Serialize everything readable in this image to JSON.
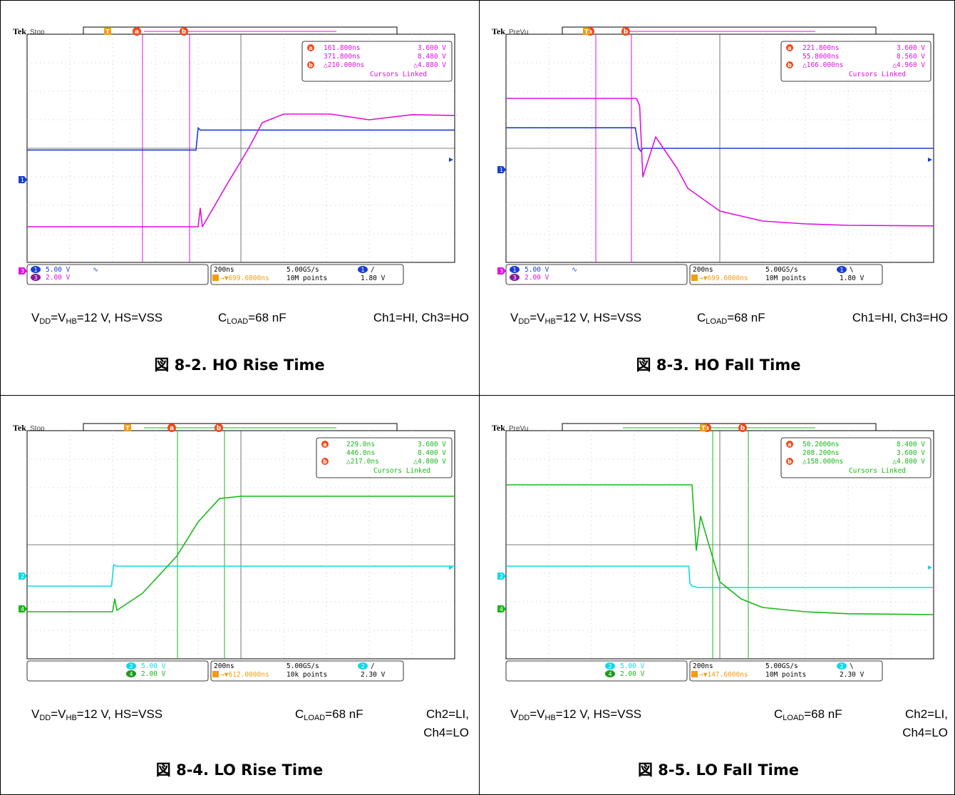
{
  "panels": [
    {
      "id": "ho-rise",
      "status": "Stop",
      "channels": [
        {
          "num": "1",
          "color": "#1a3fd0",
          "scale": "5.00 V",
          "coupling": "∿"
        },
        {
          "num": "3",
          "color": "#e010e0",
          "scale": "2.00 V"
        }
      ],
      "timebase": "200ns",
      "samplerate": "5.00GS/s",
      "delay": "699.6000ns",
      "points": "10M points",
      "trig_ch": "1",
      "trig_slope": "/",
      "trig_level": "1.80 V",
      "cursor_color": "#e010e0",
      "meas": {
        "a_time": "161.800ns",
        "a_volt": "3.600 V",
        "b_time": "371.800ns",
        "b_volt": "8.480 V",
        "d_time": "△210.000ns",
        "d_volt": "△4.880 V",
        "linked": "Cursors Linked"
      },
      "cond": {
        "vdd": "V",
        "vdd_sub": "DD",
        "eq": "=V",
        "vhb_sub": "HB",
        "rest": "=12 V, HS=VSS",
        "cload": "C",
        "cload_sub": "LOAD",
        "cload_val": "=68 nF",
        "ch": "Ch1=HI, Ch3=HO",
        "ch2": ""
      },
      "caption": "図 8-2. HO Rise Time"
    },
    {
      "id": "ho-fall",
      "status": "PreVu",
      "channels": [
        {
          "num": "1",
          "color": "#1a3fd0",
          "scale": "5.00 V",
          "coupling": "∿"
        },
        {
          "num": "3",
          "color": "#e010e0",
          "scale": "2.00 V"
        }
      ],
      "timebase": "200ns",
      "samplerate": "5.00GS/s",
      "delay": "699.6000ns",
      "points": "10M points",
      "trig_ch": "1",
      "trig_slope": "\\",
      "trig_level": "1.80 V",
      "cursor_color": "#e010e0",
      "meas": {
        "a_time": "221.800ns",
        "a_volt": "3.600 V",
        "b_time": "55.8000ns",
        "b_volt": "8.560 V",
        "d_time": "△166.000ns",
        "d_volt": "△4.960 V",
        "linked": "Cursors Linked"
      },
      "cond": {
        "vdd": "V",
        "vdd_sub": "DD",
        "eq": "=V",
        "vhb_sub": "HB",
        "rest": "=12 V, HS=VSS",
        "cload": "C",
        "cload_sub": "LOAD",
        "cload_val": "=68 nF",
        "ch": "Ch1=HI, Ch3=HO",
        "ch2": ""
      },
      "caption": "図 8-3. HO Fall Time"
    },
    {
      "id": "lo-rise",
      "status": "Stop",
      "channels": [
        {
          "num": "2",
          "color": "#10d8e8",
          "scale": "5.00 V"
        },
        {
          "num": "4",
          "color": "#18b818",
          "scale": "2.00 V"
        }
      ],
      "timebase": "200ns",
      "samplerate": "5.00GS/s",
      "delay": "612.0000ns",
      "points": "10k points",
      "trig_ch": "2",
      "trig_slope": "/",
      "trig_level": "2.30 V",
      "cursor_color": "#18b818",
      "meas": {
        "a_time": "229.0ns",
        "a_volt": "3.600 V",
        "b_time": "446.0ns",
        "b_volt": "8.400 V",
        "d_time": "△217.0ns",
        "d_volt": "△4.800 V",
        "linked": "Cursors Linked"
      },
      "cond": {
        "vdd": "V",
        "vdd_sub": "DD",
        "eq": "=V",
        "vhb_sub": "HB",
        "rest": "=12 V, HS=VSS",
        "cload": "C",
        "cload_sub": "LOAD",
        "cload_val": "=68 nF",
        "ch": "Ch2=LI,",
        "ch2": "Ch4=LO"
      },
      "caption": "図 8-4. LO Rise Time"
    },
    {
      "id": "lo-fall",
      "status": "PreVu",
      "channels": [
        {
          "num": "2",
          "color": "#10d8e8",
          "scale": "5.00 V"
        },
        {
          "num": "4",
          "color": "#18b818",
          "scale": "2.00 V"
        }
      ],
      "timebase": "200ns",
      "samplerate": "5.00GS/s",
      "delay": "147.6000ns",
      "points": "10M points",
      "trig_ch": "2",
      "trig_slope": "\\",
      "trig_level": "2.30 V",
      "cursor_color": "#18b818",
      "meas": {
        "a_time": "50.2000ns",
        "a_volt": "8.400 V",
        "b_time": "208.200ns",
        "b_volt": "3.600 V",
        "d_time": "△158.000ns",
        "d_volt": "△4.800 V",
        "linked": "Cursors Linked"
      },
      "cond": {
        "vdd": "V",
        "vdd_sub": "DD",
        "eq": "=V",
        "vhb_sub": "HB",
        "rest": "=12 V, HS=VSS",
        "cload": "C",
        "cload_sub": "LOAD",
        "cload_val": "=68 nF",
        "ch": "Ch2=LI,",
        "ch2": "Ch4=LO"
      },
      "caption": "図 8-5. LO Fall Time"
    }
  ],
  "brand": "Tek",
  "chart_data": [
    {
      "type": "line",
      "x_unit": "ns",
      "xlim": [
        -1000,
        1000
      ],
      "ylim": [
        -4,
        4
      ],
      "series": [
        {
          "name": "1",
          "x": [
            -1000,
            -210,
            -200,
            -190,
            1000
          ],
          "y": [
            -0.06,
            -0.06,
            0.72,
            0.64,
            0.64
          ]
        },
        {
          "name": "3",
          "x": [
            -1000,
            -200,
            -190,
            -180,
            -60,
            40,
            100,
            200,
            420,
            600,
            800,
            1000
          ],
          "y": [
            -2.75,
            -2.75,
            -2.1,
            -2.75,
            -1.2,
            0.05,
            0.9,
            1.2,
            1.2,
            1.0,
            1.18,
            1.15
          ]
        }
      ]
    },
    {
      "type": "line",
      "x_unit": "ns",
      "xlim": [
        -1000,
        1000
      ],
      "ylim": [
        -4,
        4
      ],
      "series": [
        {
          "name": "1",
          "x": [
            -1000,
            -395,
            -380,
            -370,
            -360,
            1000
          ],
          "y": [
            0.72,
            0.72,
            0.0,
            -0.1,
            0.0,
            0.0
          ]
        },
        {
          "name": "3",
          "x": [
            -1000,
            -390,
            -375,
            -360,
            -300,
            -200,
            -150,
            0,
            200,
            400,
            600,
            1000
          ],
          "y": [
            1.75,
            1.75,
            1.5,
            -1.0,
            0.4,
            -0.7,
            -1.4,
            -2.2,
            -2.55,
            -2.65,
            -2.7,
            -2.72
          ]
        }
      ]
    },
    {
      "type": "line",
      "x_unit": "ns",
      "xlim": [
        -1000,
        1000
      ],
      "ylim": [
        -4,
        4
      ],
      "series": [
        {
          "name": "2",
          "x": [
            -1000,
            -605,
            -595,
            -585,
            1000
          ],
          "y": [
            -1.45,
            -1.45,
            -0.7,
            -0.75,
            -0.75
          ]
        },
        {
          "name": "4",
          "x": [
            -1000,
            -600,
            -590,
            -580,
            -460,
            -300,
            -200,
            -100,
            0,
            200,
            1000
          ],
          "y": [
            -2.35,
            -2.35,
            -1.9,
            -2.3,
            -1.7,
            -0.4,
            0.8,
            1.62,
            1.7,
            1.7,
            1.7
          ]
        }
      ]
    },
    {
      "type": "line",
      "x_unit": "ns",
      "xlim": [
        -1000,
        1000
      ],
      "ylim": [
        -4,
        4
      ],
      "series": [
        {
          "name": "2",
          "x": [
            -1000,
            -145,
            -140,
            -130,
            -100,
            1000
          ],
          "y": [
            -0.75,
            -0.75,
            -1.35,
            -1.45,
            -1.5,
            -1.5
          ]
        },
        {
          "name": "4",
          "x": [
            -1000,
            -130,
            -125,
            -110,
            -90,
            0,
            100,
            200,
            400,
            600,
            1000
          ],
          "y": [
            2.1,
            2.1,
            1.5,
            -0.2,
            1.0,
            -1.3,
            -1.9,
            -2.2,
            -2.35,
            -2.42,
            -2.45
          ]
        }
      ]
    }
  ]
}
